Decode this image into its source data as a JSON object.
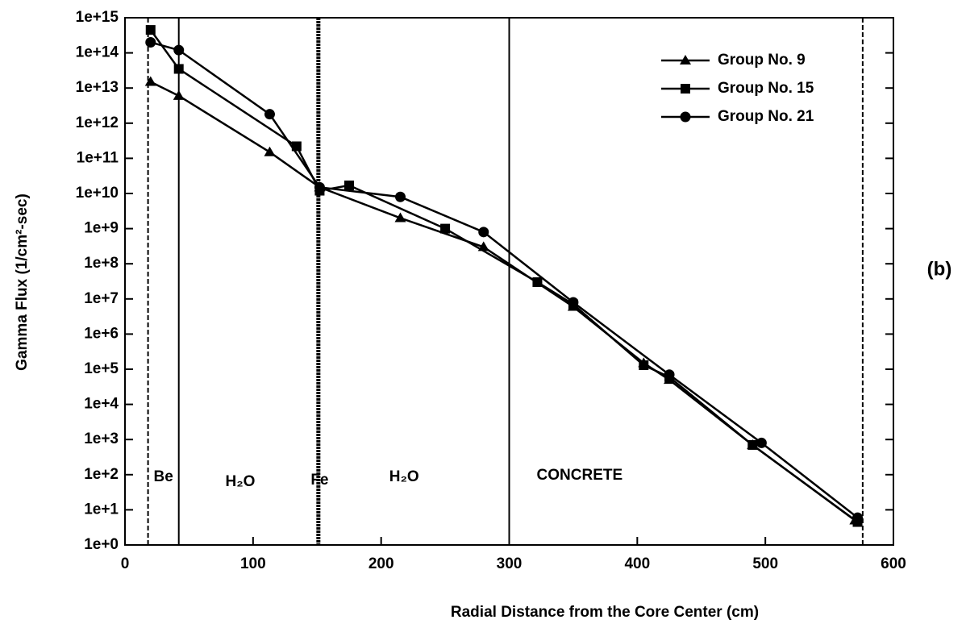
{
  "chart_data": {
    "type": "line",
    "xlabel": "Radial Distance from the Core Center (cm)",
    "ylabel": "Gamma Flux (1/cm²-sec)",
    "annotation": "(b)",
    "regions": [
      "Be",
      "H₂O",
      "Fe",
      "H₂O",
      "CONCRETE"
    ],
    "boundaries": [
      18,
      42,
      151,
      300,
      576
    ],
    "log_y": true,
    "xlim": [
      0,
      600
    ],
    "xticks": [
      0,
      100,
      200,
      300,
      400,
      500,
      600
    ],
    "ylim": [
      1,
      1000000000000000.0
    ],
    "yticks": [
      {
        "value": 1,
        "label": "1e+0"
      },
      {
        "value": 10,
        "label": "1e+1"
      },
      {
        "value": 100,
        "label": "1e+2"
      },
      {
        "value": 1000,
        "label": "1e+3"
      },
      {
        "value": 10000,
        "label": "1e+4"
      },
      {
        "value": 100000,
        "label": "1e+5"
      },
      {
        "value": 1000000,
        "label": "1e+6"
      },
      {
        "value": 10000000,
        "label": "1e+7"
      },
      {
        "value": 100000000,
        "label": "1e+8"
      },
      {
        "value": 1000000000,
        "label": "1e+9"
      },
      {
        "value": 10000000000,
        "label": "1e+10"
      },
      {
        "value": 100000000000,
        "label": "1e+11"
      },
      {
        "value": 1000000000000,
        "label": "1e+12"
      },
      {
        "value": 10000000000000,
        "label": "1e+13"
      },
      {
        "value": 100000000000000,
        "label": "1e+14"
      },
      {
        "value": 1000000000000000,
        "label": "1e+15"
      }
    ],
    "legend": "upper right",
    "series": [
      {
        "name": "Group No. 9",
        "color": "#000000",
        "marker": "triangle",
        "x": [
          20,
          42,
          113,
          152,
          215,
          280,
          350,
          405,
          425,
          490,
          570
        ],
        "values": [
          15000000000000.0,
          6000000000000.0,
          150000000000.0,
          15000000000.0,
          2000000000.0,
          300000000.0,
          6000000.0,
          150000.0,
          50000.0,
          700,
          5
        ]
      },
      {
        "name": "Group No. 15",
        "color": "#000000",
        "marker": "square",
        "x": [
          20,
          42,
          134,
          152,
          175,
          250,
          322,
          350,
          405,
          425,
          490,
          572
        ],
        "values": [
          450000000000000.0,
          35000000000000.0,
          220000000000.0,
          12000000000.0,
          17000000000.0,
          1000000000.0,
          30000000.0,
          7000000.0,
          130000.0,
          60000.0,
          700,
          4.5
        ]
      },
      {
        "name": "Group No. 21",
        "color": "#000000",
        "marker": "circle",
        "x": [
          20,
          42,
          113,
          152,
          215,
          280,
          350,
          425,
          497,
          572
        ],
        "values": [
          200000000000000.0,
          120000000000000.0,
          1800000000000.0,
          15000000000.0,
          8000000000.0,
          800000000.0,
          8000000.0,
          70000.0,
          800,
          6
        ]
      }
    ]
  }
}
